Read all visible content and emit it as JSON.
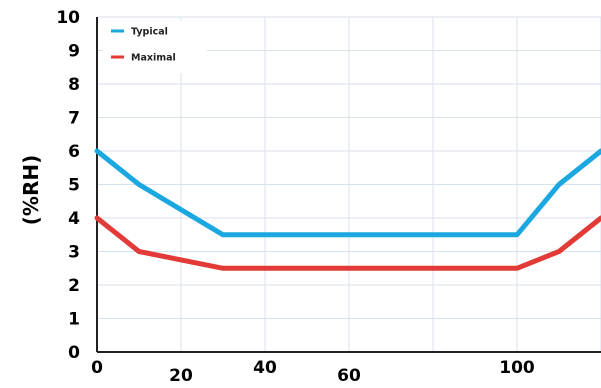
{
  "chart_data": {
    "type": "line",
    "title": "",
    "xlabel": "",
    "ylabel": "(%RH)",
    "x": [
      0,
      10,
      30,
      100,
      110,
      120
    ],
    "xlim": [
      0,
      120
    ],
    "ylim": [
      0,
      10
    ],
    "x_ticks": [
      {
        "value": 0,
        "label": "0"
      },
      {
        "value": 20,
        "label": "20"
      },
      {
        "value": 40,
        "label": "40"
      },
      {
        "value": 60,
        "label": "60"
      },
      {
        "value": 100,
        "label": "100"
      }
    ],
    "y_ticks": [
      {
        "value": 0,
        "label": "0"
      },
      {
        "value": 1,
        "label": "1"
      },
      {
        "value": 2,
        "label": "2"
      },
      {
        "value": 3,
        "label": "3"
      },
      {
        "value": 4,
        "label": "4"
      },
      {
        "value": 5,
        "label": "5"
      },
      {
        "value": 6,
        "label": "6"
      },
      {
        "value": 7,
        "label": "7"
      },
      {
        "value": 8,
        "label": "8"
      },
      {
        "value": 9,
        "label": "9"
      },
      {
        "value": 10,
        "label": "10"
      }
    ],
    "grid": true,
    "legend_position": "top-left",
    "series": [
      {
        "name": "Typical",
        "color": "#1ba7e0",
        "values": [
          6,
          5,
          3.5,
          3.5,
          5,
          6
        ]
      },
      {
        "name": "Maximal",
        "color": "#e23a36",
        "values": [
          4,
          3,
          2.5,
          2.5,
          3,
          4
        ]
      }
    ]
  }
}
